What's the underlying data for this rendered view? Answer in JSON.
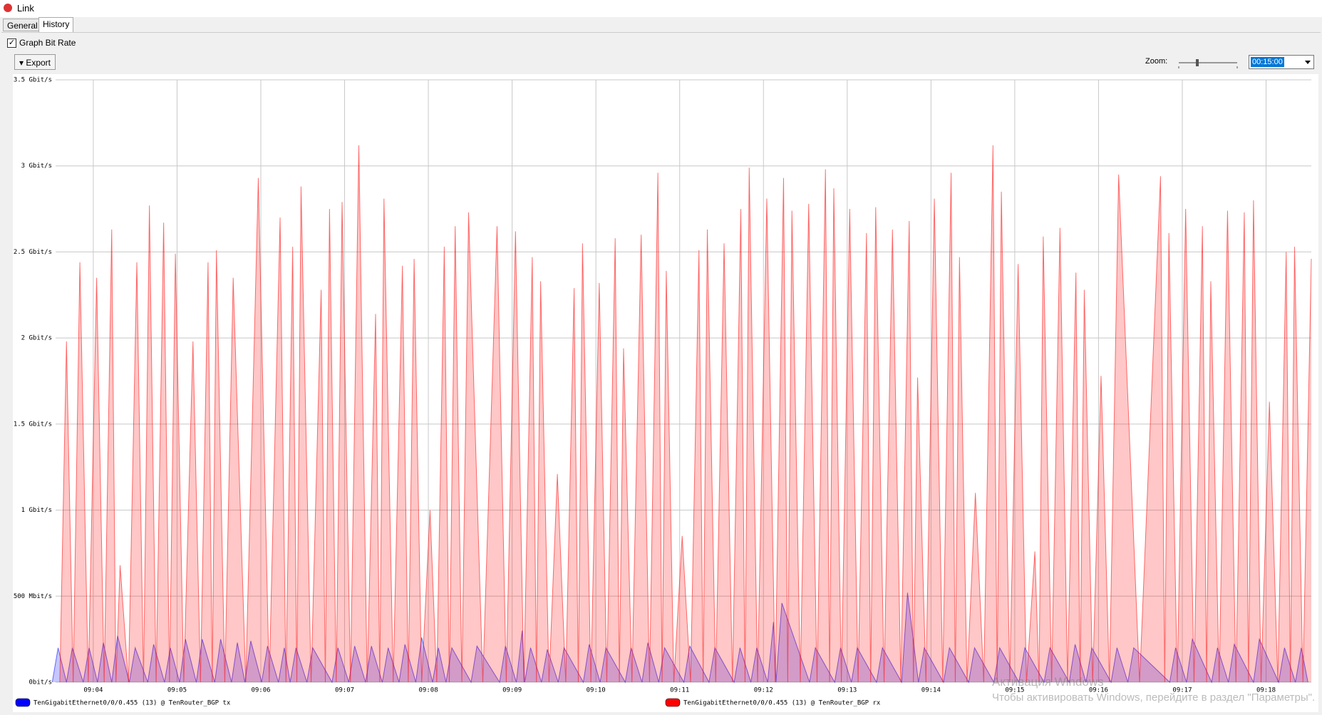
{
  "window": {
    "title": "Link",
    "tabs": [
      "General",
      "History"
    ],
    "checkbox": "Graph Bit Rate",
    "export": "Export",
    "zoom_label": "Zoom:",
    "zoom_value": "00:15:00",
    "watermark": [
      "Активация Windows",
      "Чтобы активировать Windows, перейдите в раздел \"Параметры\"."
    ]
  },
  "chart_data": {
    "type": "area",
    "xlim": [
      3.55,
      18.54
    ],
    "xticks": [
      {
        "value": 4,
        "label": "09:04"
      },
      {
        "value": 5,
        "label": "09:05"
      },
      {
        "value": 6,
        "label": "09:06"
      },
      {
        "value": 7,
        "label": "09:07"
      },
      {
        "value": 8,
        "label": "09:08"
      },
      {
        "value": 9,
        "label": "09:09"
      },
      {
        "value": 10,
        "label": "09:10"
      },
      {
        "value": 11,
        "label": "09:11"
      },
      {
        "value": 12,
        "label": "09:12"
      },
      {
        "value": 13,
        "label": "09:13"
      },
      {
        "value": 14,
        "label": "09:14"
      },
      {
        "value": 15,
        "label": "09:15"
      },
      {
        "value": 16,
        "label": "09:16"
      },
      {
        "value": 17,
        "label": "09:17"
      },
      {
        "value": 18,
        "label": "09:18"
      }
    ],
    "ylim": [
      0,
      3.5
    ],
    "yticks": [
      {
        "value": 0,
        "label": "0bit/s"
      },
      {
        "value": 0.5,
        "label": "500 Mbit/s"
      },
      {
        "value": 1,
        "label": "1 Gbit/s"
      },
      {
        "value": 1.5,
        "label": "1.5 Gbit/s"
      },
      {
        "value": 2,
        "label": "2 Gbit/s"
      },
      {
        "value": 2.5,
        "label": "2.5 Gbit/s"
      },
      {
        "value": 3,
        "label": "3 Gbit/s"
      },
      {
        "value": 3.5,
        "label": "3.5 Gbit/s"
      }
    ],
    "grid": true,
    "series": [
      {
        "name": "TenGigabitEthernet0/0/0.455 (13) @ TenRouter_BGP tx",
        "color": "#0000ff",
        "x": [
          3.51,
          3.58,
          3.68,
          3.75,
          3.88,
          3.95,
          4.05,
          4.12,
          4.22,
          4.29,
          4.43,
          4.5,
          4.65,
          4.72,
          4.85,
          4.92,
          5.03,
          5.1,
          5.23,
          5.3,
          5.45,
          5.52,
          5.65,
          5.72,
          5.81,
          5.88,
          6.01,
          6.08,
          6.21,
          6.28,
          6.35,
          6.42,
          6.55,
          6.62,
          6.85,
          6.92,
          7.05,
          7.12,
          7.25,
          7.32,
          7.45,
          7.52,
          7.65,
          7.72,
          7.85,
          7.92,
          8.05,
          8.12,
          8.21,
          8.28,
          8.51,
          8.58,
          8.85,
          8.92,
          9.05,
          9.12,
          9.15,
          9.22,
          9.35,
          9.42,
          9.55,
          9.62,
          9.85,
          9.92,
          10.05,
          10.12,
          10.35,
          10.42,
          10.55,
          10.62,
          10.75,
          10.82,
          11.05,
          11.12,
          11.35,
          11.42,
          11.65,
          11.72,
          11.85,
          11.92,
          12.05,
          12.12,
          12.15,
          12.22,
          12.55,
          12.62,
          12.85,
          12.92,
          13.05,
          13.12,
          13.35,
          13.42,
          13.65,
          13.72,
          13.85,
          13.92,
          14.15,
          14.22,
          14.45,
          14.52,
          14.75,
          14.82,
          15.05,
          15.12,
          15.35,
          15.42,
          15.65,
          15.72,
          15.85,
          15.92,
          16.15,
          16.22,
          16.35,
          16.42,
          16.85,
          16.92,
          17.05,
          17.12,
          17.35,
          17.42,
          17.55,
          17.62,
          17.85,
          17.92,
          18.15,
          18.22,
          18.35,
          18.42,
          18.5
        ],
        "values": [
          0,
          0.2,
          0,
          0.2,
          0,
          0.2,
          0,
          0.23,
          0,
          0.27,
          0,
          0.2,
          0,
          0.22,
          0,
          0.2,
          0,
          0.25,
          0,
          0.25,
          0,
          0.25,
          0,
          0.23,
          0,
          0.24,
          0,
          0.21,
          0,
          0.2,
          0,
          0.2,
          0,
          0.2,
          0,
          0.2,
          0,
          0.21,
          0,
          0.21,
          0,
          0.2,
          0,
          0.22,
          0,
          0.26,
          0,
          0.2,
          0,
          0.2,
          0,
          0.21,
          0,
          0.21,
          0,
          0.3,
          0,
          0.2,
          0,
          0.19,
          0,
          0.2,
          0,
          0.22,
          0,
          0.2,
          0,
          0.2,
          0,
          0.23,
          0,
          0.2,
          0,
          0.21,
          0,
          0.2,
          0,
          0.2,
          0,
          0.2,
          0,
          0.35,
          0,
          0.46,
          0,
          0.2,
          0,
          0.2,
          0,
          0.2,
          0,
          0.2,
          0,
          0.52,
          0,
          0.2,
          0,
          0.2,
          0,
          0.2,
          0,
          0.2,
          0,
          0.2,
          0,
          0.2,
          0,
          0.22,
          0,
          0.2,
          0,
          0.2,
          0,
          0.2,
          0,
          0.2,
          0,
          0.25,
          0,
          0.2,
          0,
          0.22,
          0,
          0.25,
          0,
          0.2,
          0,
          0.2,
          0
        ]
      },
      {
        "name": "TenGigabitEthernet0/0/0.455 (13) @ TenRouter_BGP rx",
        "color": "#ff0000",
        "x": [
          3.6,
          3.68,
          3.76,
          3.84,
          3.94,
          4.04,
          4.13,
          4.22,
          4.27,
          4.32,
          4.42,
          4.52,
          4.6,
          4.67,
          4.75,
          4.84,
          4.91,
          4.98,
          5.08,
          5.19,
          5.28,
          5.37,
          5.42,
          5.47,
          5.57,
          5.67,
          5.82,
          5.97,
          6.1,
          6.23,
          6.3,
          6.38,
          6.43,
          6.48,
          6.6,
          6.72,
          6.77,
          6.82,
          6.9,
          6.97,
          7.07,
          7.17,
          7.27,
          7.37,
          7.42,
          7.47,
          7.58,
          7.69,
          7.76,
          7.83,
          7.92,
          8.02,
          8.1,
          8.19,
          8.25,
          8.32,
          8.4,
          8.48,
          8.65,
          8.82,
          8.93,
          9.04,
          9.14,
          9.24,
          9.29,
          9.34,
          9.44,
          9.54,
          9.64,
          9.74,
          9.79,
          9.84,
          9.94,
          10.04,
          10.13,
          10.23,
          10.28,
          10.33,
          10.43,
          10.54,
          10.64,
          10.74,
          10.79,
          10.84,
          10.93,
          11.03,
          11.13,
          11.23,
          11.28,
          11.33,
          11.43,
          11.53,
          11.63,
          11.73,
          11.78,
          11.83,
          11.93,
          12.04,
          12.14,
          12.24,
          12.29,
          12.34,
          12.44,
          12.54,
          12.64,
          12.74,
          12.79,
          12.84,
          12.93,
          13.03,
          13.13,
          13.23,
          13.28,
          13.34,
          13.44,
          13.54,
          13.64,
          13.74,
          13.79,
          13.84,
          13.94,
          14.04,
          14.14,
          14.24,
          14.29,
          14.34,
          14.43,
          14.53,
          14.63,
          14.74,
          14.79,
          14.84,
          14.94,
          15.04,
          15.14,
          15.24,
          15.29,
          15.34,
          15.44,
          15.54,
          15.63,
          15.73,
          15.78,
          15.83,
          15.93,
          16.03,
          16.13,
          16.24,
          16.49,
          16.74,
          16.79,
          16.84,
          16.94,
          17.04,
          17.14,
          17.24,
          17.29,
          17.34,
          17.44,
          17.54,
          17.64,
          17.74,
          17.79,
          17.85,
          17.94,
          18.04,
          18.14,
          18.24,
          18.29,
          18.34,
          18.44,
          18.54
        ],
        "values": [
          0,
          1.98,
          0,
          2.44,
          0,
          2.35,
          0,
          2.63,
          0,
          0.68,
          0,
          2.44,
          0,
          2.77,
          0,
          2.67,
          0,
          2.49,
          0,
          1.98,
          0,
          2.44,
          0,
          2.51,
          0,
          2.35,
          0,
          2.93,
          0,
          2.7,
          0,
          2.53,
          0,
          2.88,
          0,
          2.28,
          0,
          2.75,
          0,
          2.79,
          0,
          3.12,
          0,
          2.14,
          0,
          2.81,
          0,
          2.42,
          0,
          2.46,
          0,
          1.0,
          0,
          2.53,
          0,
          2.65,
          0,
          2.73,
          0,
          2.65,
          0,
          2.62,
          0,
          2.47,
          0,
          2.33,
          0,
          1.21,
          0,
          2.29,
          0,
          2.55,
          0,
          2.32,
          0,
          2.58,
          0,
          1.94,
          0,
          2.6,
          0,
          2.96,
          0,
          2.39,
          0,
          0.85,
          0,
          2.51,
          0,
          2.63,
          0,
          2.55,
          0,
          2.75,
          0,
          2.99,
          0,
          2.81,
          0,
          2.93,
          0,
          2.74,
          0,
          2.78,
          0,
          2.98,
          0,
          2.87,
          0,
          2.75,
          0,
          2.61,
          0,
          2.76,
          0,
          2.63,
          0,
          2.68,
          0,
          1.77,
          0,
          2.81,
          0,
          2.96,
          0,
          2.47,
          0,
          1.1,
          0,
          3.12,
          0,
          2.85,
          0,
          2.43,
          0,
          0.76,
          0,
          2.59,
          0,
          2.64,
          0,
          2.38,
          0,
          2.28,
          0,
          1.78,
          0,
          2.95,
          0,
          2.94,
          0,
          2.61,
          0,
          2.75,
          0,
          2.65,
          0,
          2.33,
          0,
          2.74,
          0,
          2.73,
          0,
          2.8,
          0,
          1.63,
          0,
          2.5,
          0,
          2.53,
          0,
          2.46
        ]
      }
    ]
  }
}
